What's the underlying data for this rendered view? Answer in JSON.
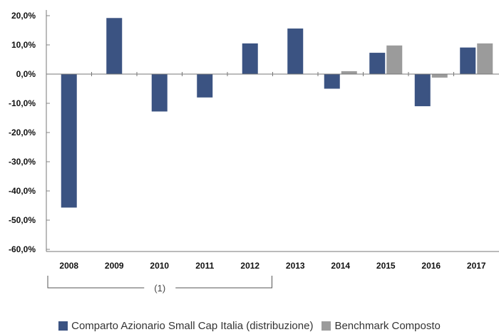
{
  "chart_data": {
    "type": "bar",
    "categories": [
      "2008",
      "2009",
      "2010",
      "2011",
      "2012",
      "2013",
      "2014",
      "2015",
      "2016",
      "2017"
    ],
    "series": [
      {
        "name": "Comparto Azionario Small Cap Italia (distribuzione)",
        "color": "#3b5382",
        "values": [
          -45.7,
          19.2,
          -12.8,
          -8.0,
          10.5,
          15.6,
          -5.0,
          7.3,
          -11.0,
          9.1
        ]
      },
      {
        "name": "Benchmark Composto",
        "color": "#9b9b9b",
        "values": [
          null,
          null,
          null,
          null,
          null,
          null,
          1.0,
          9.8,
          -1.2,
          10.5
        ]
      }
    ],
    "y_ticks": [
      "20,0%",
      "10,0%",
      "0,0%",
      "-10,0%",
      "-20,0%",
      "-30,0%",
      "-40,0%",
      "-50,0%",
      "-60,0%"
    ],
    "ylim": [
      -60,
      20
    ],
    "grid": false,
    "legend": "bottom",
    "annotation": {
      "text": "(1)",
      "span": [
        "2008",
        "2012"
      ]
    }
  }
}
